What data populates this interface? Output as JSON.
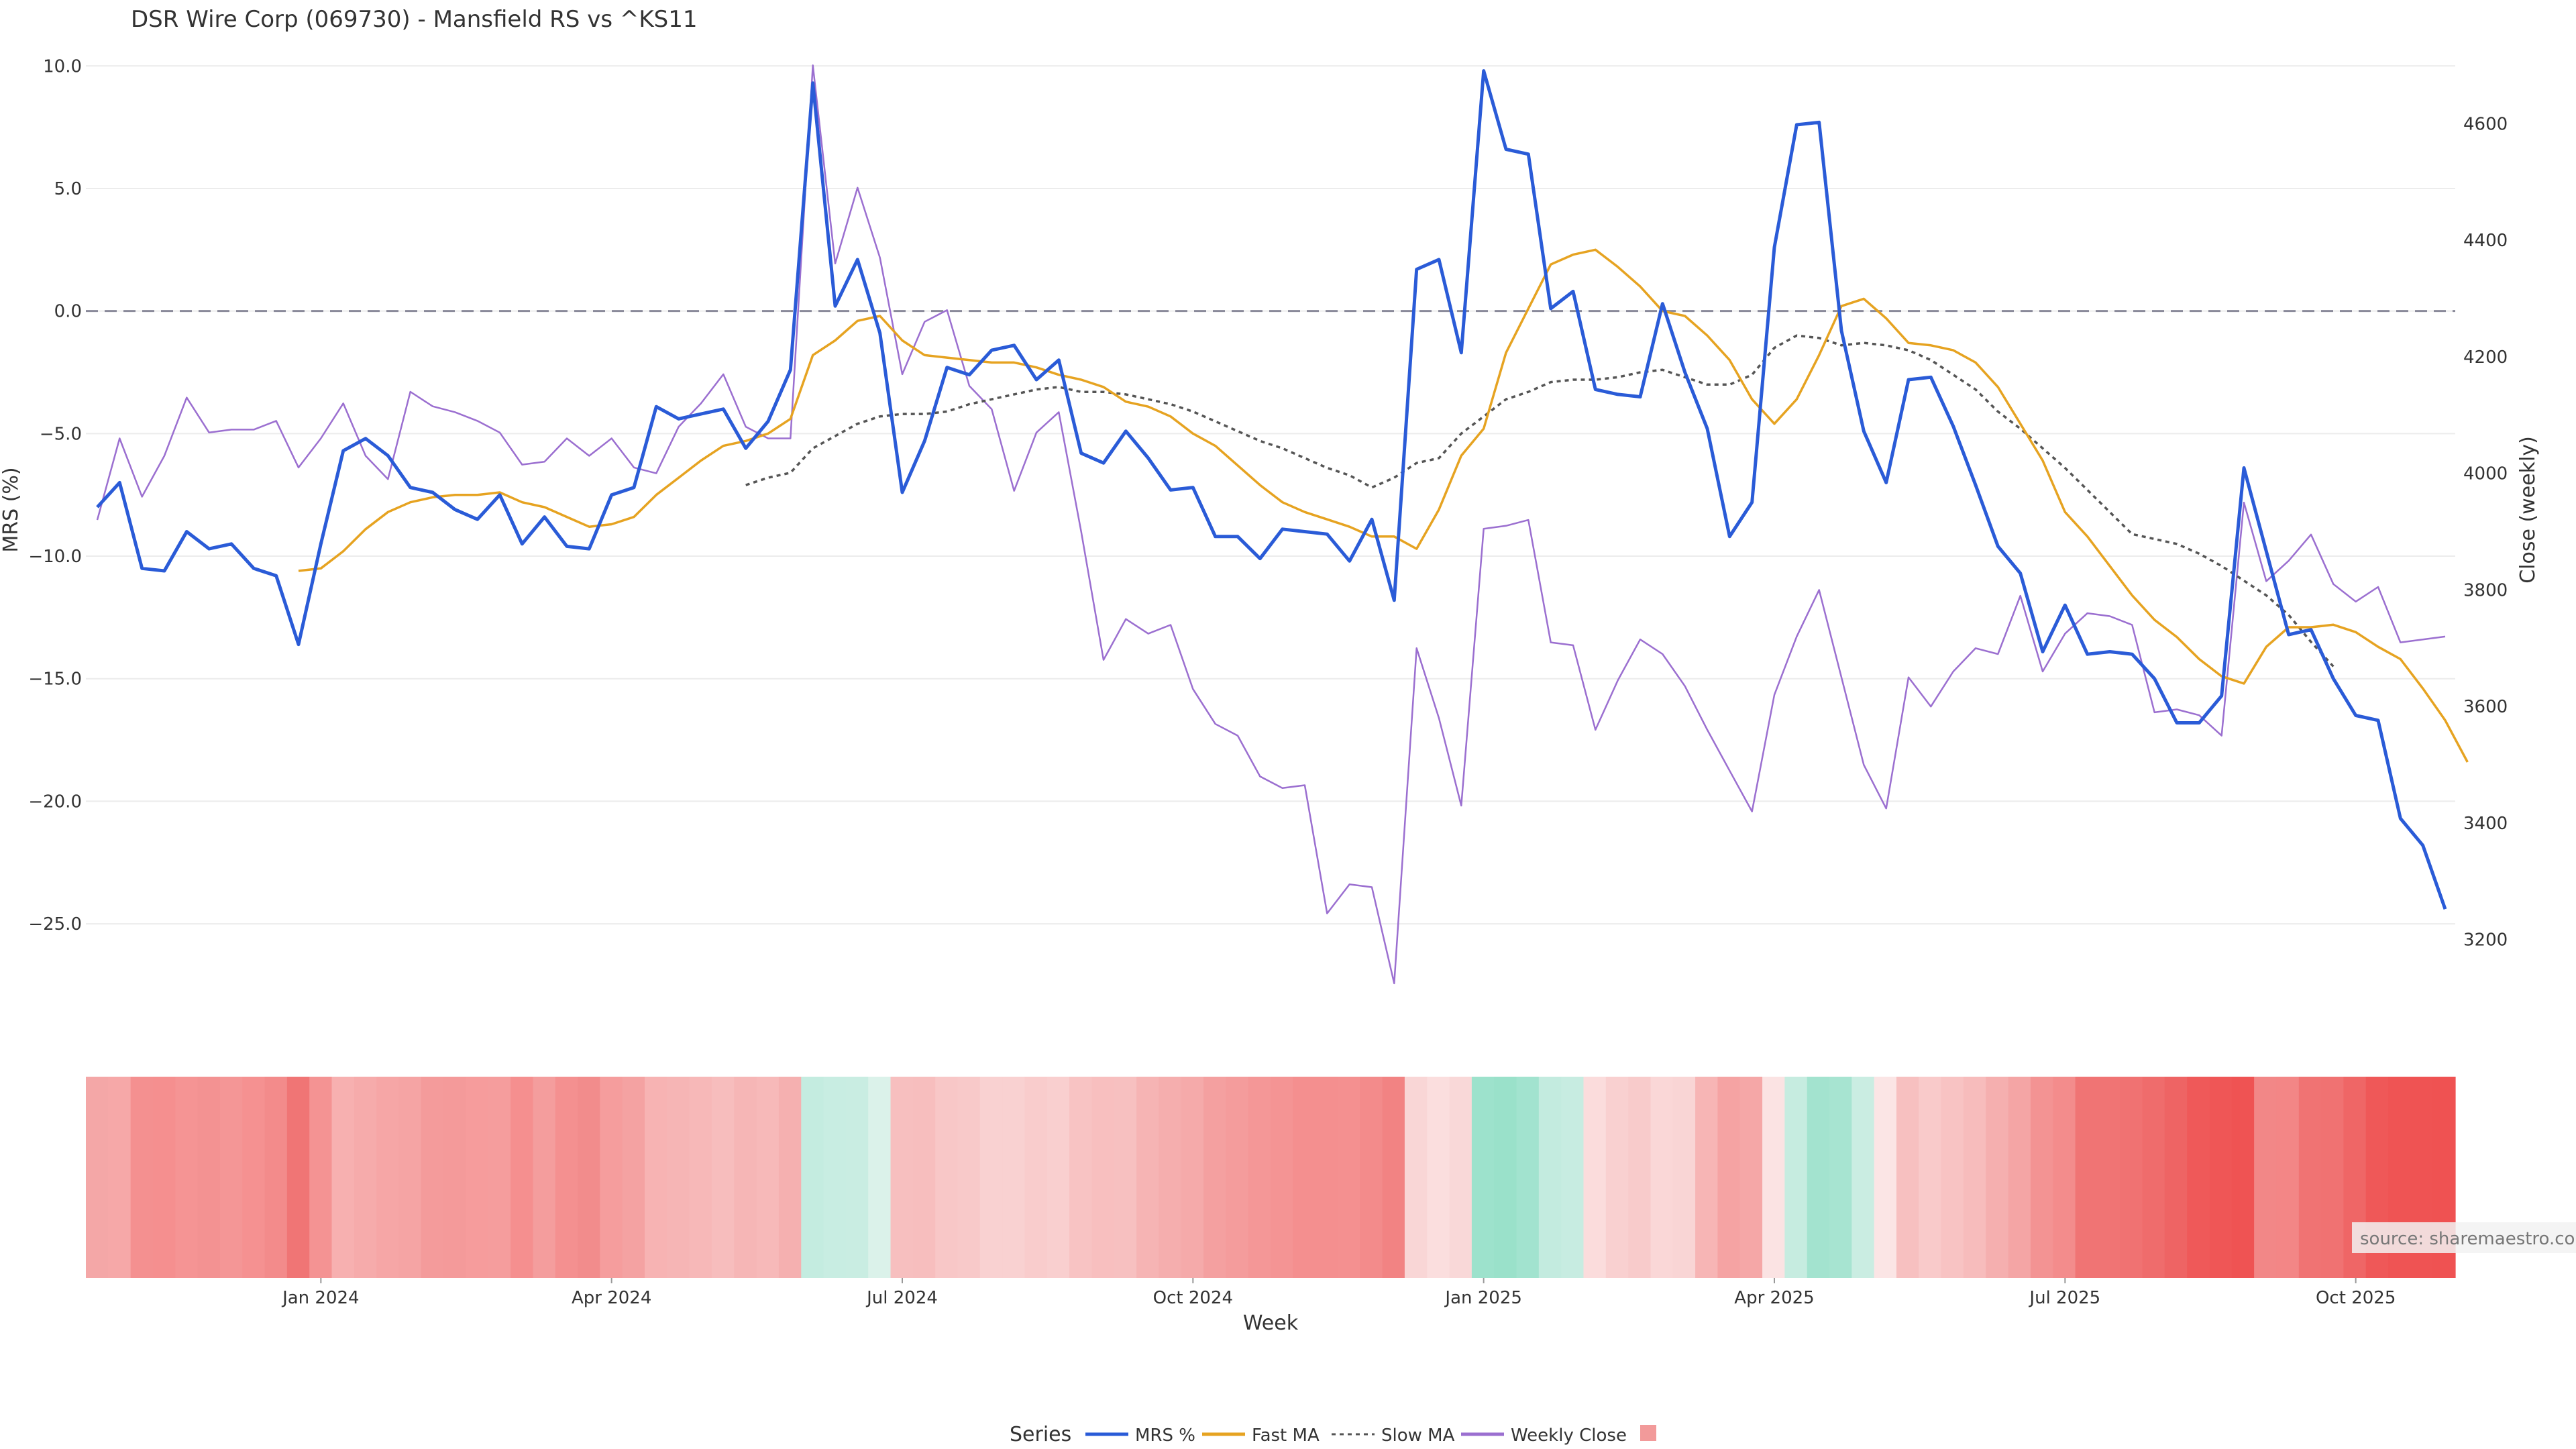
{
  "chart_data": {
    "type": "line",
    "title": "DSR Wire Corp (069730) - Mansfield RS vs ^KS11",
    "xlabel": "Week",
    "ylabel_left": "MRS (%)",
    "ylabel_right": "Close (weekly)",
    "x_ticks": [
      "Jan 2024",
      "Apr 2024",
      "Jul 2024",
      "Oct 2024",
      "Jan 2025",
      "Apr 2025",
      "Jul 2025",
      "Oct 2025"
    ],
    "left_axis": {
      "range": [
        -28.5,
        10.5
      ],
      "ticks": [
        "10.0",
        "5.0",
        "0.0",
        "−5.0",
        "−10.0",
        "−15.0",
        "−20.0",
        "−25.0"
      ],
      "tick_values": [
        10,
        5,
        0,
        -5,
        -10,
        -15,
        -20,
        -25
      ]
    },
    "right_axis": {
      "range": [
        3080,
        4720
      ],
      "ticks": [
        "4600",
        "4400",
        "4200",
        "4000",
        "3800",
        "3600",
        "3400",
        "3200"
      ],
      "tick_values": [
        4600,
        4400,
        4200,
        4000,
        3800,
        3600,
        3400,
        3200
      ]
    },
    "zero_line": 0,
    "grid": true,
    "series": [
      {
        "name": "MRS %",
        "axis": "left",
        "color": "#2a5bd7",
        "values": [
          -8.0,
          -7.0,
          -10.5,
          -10.6,
          -9.0,
          -9.7,
          -9.5,
          -10.5,
          -10.8,
          -13.6,
          -9.5,
          -5.7,
          -5.2,
          -5.9,
          -7.2,
          -7.4,
          -8.1,
          -8.5,
          -7.5,
          -9.5,
          -8.4,
          -9.6,
          -9.7,
          -7.5,
          -7.2,
          -3.9,
          -4.4,
          -4.2,
          -4.0,
          -5.6,
          -4.5,
          -2.4,
          9.3,
          0.2,
          2.1,
          -0.9,
          -7.4,
          -5.3,
          -2.3,
          -2.6,
          -1.6,
          -1.4,
          -2.8,
          -2.0,
          -5.8,
          -6.2,
          -4.9,
          -6.0,
          -7.3,
          -7.2,
          -9.2,
          -9.2,
          -10.1,
          -8.9,
          -9.0,
          -9.1,
          -10.2,
          -8.5,
          -11.8,
          1.7,
          2.1,
          -1.7,
          9.8,
          6.6,
          6.4,
          0.1,
          0.8,
          -3.2,
          -3.4,
          -3.5,
          0.3,
          -2.5,
          -4.8,
          -9.2,
          -7.8,
          2.6,
          7.6,
          7.7,
          -0.8,
          -4.9,
          -7.0,
          -2.8,
          -2.7,
          -4.7,
          -7.1,
          -9.6,
          -10.7,
          -13.9,
          -12.0,
          -14.0,
          -13.9,
          -14.0,
          -15.0,
          -16.8,
          -16.8,
          -15.7,
          -6.4,
          -9.8,
          -13.2,
          -13.0,
          -15.0,
          -16.5,
          -16.7,
          -20.7,
          -21.8,
          -24.4
        ]
      },
      {
        "name": "Fast MA",
        "axis": "left",
        "color": "#e6a321",
        "start_index": 9,
        "values": [
          -10.6,
          -10.5,
          -9.8,
          -8.9,
          -8.2,
          -7.8,
          -7.6,
          -7.5,
          -7.5,
          -7.4,
          -7.8,
          -8.0,
          -8.4,
          -8.8,
          -8.7,
          -8.4,
          -7.5,
          -6.8,
          -6.1,
          -5.5,
          -5.3,
          -5.0,
          -4.4,
          -1.8,
          -1.2,
          -0.4,
          -0.2,
          -1.2,
          -1.8,
          -1.9,
          -2.0,
          -2.1,
          -2.1,
          -2.3,
          -2.6,
          -2.8,
          -3.1,
          -3.7,
          -3.9,
          -4.3,
          -5.0,
          -5.5,
          -6.3,
          -7.1,
          -7.8,
          -8.2,
          -8.5,
          -8.8,
          -9.2,
          -9.2,
          -9.7,
          -8.1,
          -5.9,
          -4.8,
          -1.7,
          0.1,
          1.9,
          2.3,
          2.5,
          1.8,
          1.0,
          0.0,
          -0.2,
          -1.0,
          -2.0,
          -3.6,
          -4.6,
          -3.6,
          -1.8,
          0.2,
          0.5,
          -0.3,
          -1.3,
          -1.4,
          -1.6,
          -2.1,
          -3.1,
          -4.6,
          -6.1,
          -8.2,
          -9.2,
          -10.4,
          -11.6,
          -12.6,
          -13.3,
          -14.2,
          -14.9,
          -15.2,
          -13.7,
          -12.9,
          -12.9,
          -12.8,
          -13.1,
          -13.7,
          -14.2,
          -15.4,
          -16.7,
          -18.4
        ]
      },
      {
        "name": "Slow MA",
        "axis": "left",
        "color": "#555555",
        "dash": true,
        "start_index": 29,
        "values": [
          -7.1,
          -6.8,
          -6.6,
          -5.6,
          -5.1,
          -4.6,
          -4.3,
          -4.2,
          -4.2,
          -4.1,
          -3.8,
          -3.6,
          -3.4,
          -3.2,
          -3.1,
          -3.3,
          -3.3,
          -3.4,
          -3.6,
          -3.8,
          -4.1,
          -4.5,
          -4.9,
          -5.3,
          -5.6,
          -6.0,
          -6.4,
          -6.7,
          -7.2,
          -6.8,
          -6.2,
          -6.0,
          -5.0,
          -4.3,
          -3.6,
          -3.3,
          -2.9,
          -2.8,
          -2.8,
          -2.7,
          -2.5,
          -2.4,
          -2.7,
          -3.0,
          -3.0,
          -2.6,
          -1.5,
          -1.0,
          -1.1,
          -1.4,
          -1.3,
          -1.4,
          -1.6,
          -2.0,
          -2.6,
          -3.2,
          -4.1,
          -4.8,
          -5.6,
          -6.4,
          -7.3,
          -8.2,
          -9.1,
          -9.3,
          -9.5,
          -9.9,
          -10.4,
          -11.0,
          -11.6,
          -12.4,
          -13.5,
          -14.5
        ]
      },
      {
        "name": "Weekly Close",
        "axis": "right",
        "color": "#9b6fd0",
        "values": [
          3920,
          4060,
          3960,
          4030,
          4130,
          4070,
          4075,
          4075,
          4090,
          4010,
          4060,
          4120,
          4030,
          3990,
          4140,
          4115,
          4105,
          4090,
          4070,
          4015,
          4020,
          4060,
          4030,
          4060,
          4010,
          4000,
          4080,
          4120,
          4170,
          4080,
          4060,
          4060,
          4700,
          4360,
          4490,
          4370,
          4170,
          4260,
          4280,
          4150,
          4110,
          3970,
          4070,
          4105,
          3900,
          3680,
          3750,
          3725,
          3740,
          3630,
          3570,
          3550,
          3480,
          3460,
          3465,
          3245,
          3295,
          3290,
          3125,
          3700,
          3580,
          3430,
          3905,
          3910,
          3920,
          3710,
          3705,
          3560,
          3645,
          3715,
          3690,
          3635,
          3560,
          3490,
          3420,
          3620,
          3720,
          3800,
          3650,
          3500,
          3425,
          3650,
          3600,
          3660,
          3700,
          3690,
          3790,
          3660,
          3725,
          3760,
          3755,
          3740,
          3590,
          3595,
          3585,
          3550,
          3950,
          3815,
          3850,
          3895,
          3810,
          3780,
          3805,
          3710,
          3715,
          3720
        ]
      }
    ],
    "heatmap_strip": {
      "description_values": "per-week MRS colour band",
      "colors": [
        "#f4a7a7",
        "#f6a8a8",
        "#f49090",
        "#f58f8f",
        "#f59494",
        "#f39292",
        "#f49696",
        "#f59191",
        "#f38b8b",
        "#f07575",
        "#f49393",
        "#f7b0b0",
        "#f6abab",
        "#f6a6a6",
        "#f5a4a4",
        "#f49b9b",
        "#f49a9a",
        "#f69c9c",
        "#f59d9d",
        "#f58f8f",
        "#f49d9d",
        "#f49090",
        "#f28c8c",
        "#f59d9d",
        "#f4a2a2",
        "#f7b3b3",
        "#f6b5b5",
        "#f7b8b8",
        "#f7bdbd",
        "#f6b6b6",
        "#f7b9b9",
        "#f5b0b0",
        "#c4ece0",
        "#c8ede2",
        "#c9ede2",
        "#dbf2ea",
        "#f7bfbf",
        "#f7bebe",
        "#f8c7c7",
        "#f8c9c9",
        "#f9d1d1",
        "#f9d1d1",
        "#f9cccc",
        "#f9cfcf",
        "#f8c3c3",
        "#f8bfbf",
        "#f7c0c0",
        "#f6b4b4",
        "#f5aeae",
        "#f5aaaa",
        "#f4a0a0",
        "#f49c9c",
        "#f49797",
        "#f49494",
        "#f48f8f",
        "#f48f8f",
        "#f49090",
        "#f38b8b",
        "#f28383",
        "#f9d6d6",
        "#fbdede",
        "#f9d8d8",
        "#9de2cc",
        "#9ae1ca",
        "#a2e3cf",
        "#c3ebdf",
        "#c7ece1",
        "#fbdcdc",
        "#f9d0d0",
        "#f8cbcb",
        "#fad7d7",
        "#f9d5d5",
        "#f7b5b5",
        "#f5a3a3",
        "#f5a7a7",
        "#fbe3e3",
        "#c6ece0",
        "#a3e3cf",
        "#a7e4d1",
        "#caede2",
        "#fbe5e5",
        "#f7c0c0",
        "#f9caca",
        "#f8c3c3",
        "#f7bcbc",
        "#f5afaf",
        "#f4a5a5",
        "#f39393",
        "#f38c8c",
        "#f07474",
        "#f07474",
        "#f07272",
        "#ef6c6c",
        "#ee6464",
        "#ef5959",
        "#ef5656",
        "#ef5353",
        "#f28787",
        "#f38686",
        "#f07373",
        "#f07272",
        "#ef6666",
        "#ef5858",
        "#ef5454",
        "#ef5353",
        "#ef5252"
      ]
    },
    "legend": {
      "title": "Series",
      "placement": "bottom-center",
      "items": [
        {
          "label": "MRS %",
          "color": "#2a5bd7",
          "style": "solid"
        },
        {
          "label": "Fast MA",
          "color": "#e6a321",
          "style": "solid"
        },
        {
          "label": "Slow MA",
          "color": "#555555",
          "style": "dotted"
        },
        {
          "label": "Weekly Close",
          "color": "#9b6fd0",
          "style": "solid"
        },
        {
          "label": "",
          "color": "#f29a9a",
          "style": "swatch"
        }
      ]
    },
    "source_note": "source: sharemaestro.com"
  }
}
